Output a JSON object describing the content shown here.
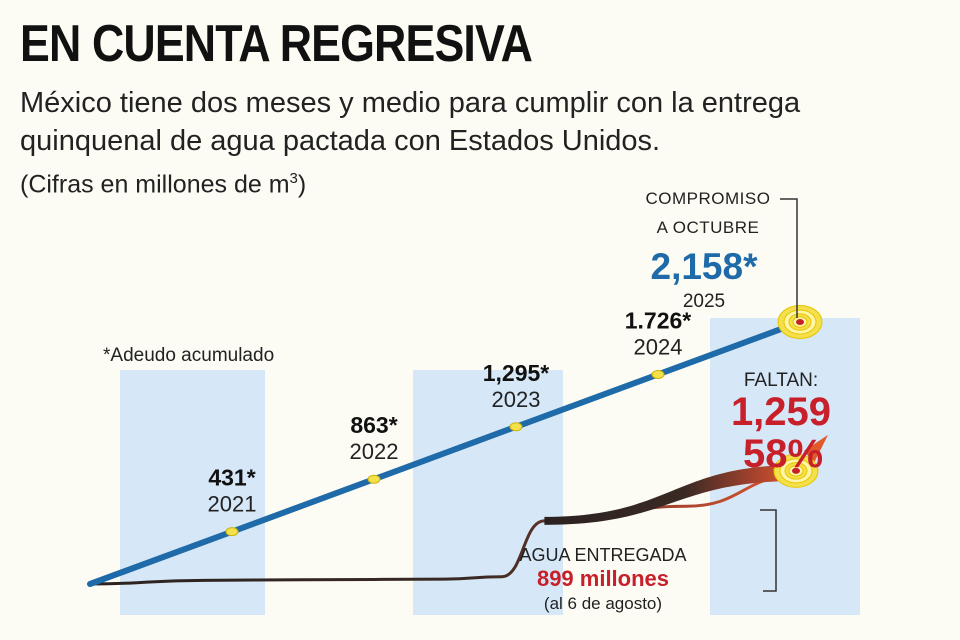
{
  "header": {
    "title": "EN CUENTA REGRESIVA",
    "subtitle": "México tiene dos meses y medio para cumplir con la entrega quinquenal de agua pactada con Estados Unidos.",
    "units_prefix": "(Cifras en millones de m",
    "units_sup": "3",
    "units_suffix": ")"
  },
  "colors": {
    "commitment_line": "#1f6aa8",
    "column_band": "#d6e8f7",
    "delivered_line": "#2b2220",
    "shortfall": "#c8202a",
    "marker": "#f4e04a"
  },
  "chart_data": {
    "type": "line",
    "series": [
      {
        "role": "commitment",
        "x": [
          2020,
          2021,
          2022,
          2023,
          2024,
          2025
        ],
        "values": [
          0,
          431,
          863,
          1295,
          1726,
          2158
        ]
      },
      {
        "role": "delivered",
        "x": [
          2020,
          2020.8,
          2021.5,
          2022.5,
          2022.9,
          2023.2,
          2024.2,
          2025
        ],
        "values": [
          0,
          30,
          35,
          40,
          60,
          520,
          640,
          899
        ]
      }
    ],
    "note": "*Adeudo acumulado",
    "points": [
      {
        "value_label": "431*",
        "year": "2021"
      },
      {
        "value_label": "863*",
        "year": "2022"
      },
      {
        "value_label": "1,295*",
        "year": "2023"
      },
      {
        "value_label": "1.726*",
        "year": "2024"
      }
    ],
    "commitment": {
      "label_line1": "COMPROMISO",
      "label_line2": "A OCTUBRE",
      "value_label": "2,158*",
      "year": "2025"
    },
    "remaining": {
      "label": "FALTAN:",
      "value": "1,259",
      "percent": "58%"
    },
    "delivered": {
      "label": "AGUA ENTREGADA",
      "value": "899 millones",
      "date": "(al 6 de agosto)"
    }
  }
}
